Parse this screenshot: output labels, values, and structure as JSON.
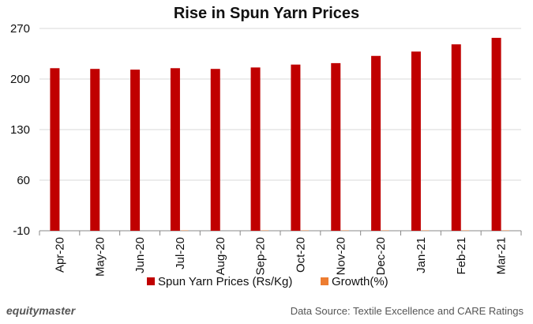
{
  "chart_data": {
    "type": "bar",
    "title": "Rise in Spun Yarn Prices",
    "categories": [
      "Apr-20",
      "May-20",
      "Jun-20",
      "Jul-20",
      "Aug-20",
      "Sep-20",
      "Oct-20",
      "Nov-20",
      "Dec-20",
      "Jan-21",
      "Feb-21",
      "Mar-21"
    ],
    "series": [
      {
        "name": "Spun Yarn Prices (Rs/Kg)",
        "color": "#c00000",
        "values": [
          215,
          214,
          213,
          215,
          214,
          216,
          220,
          222,
          232,
          238,
          248,
          257
        ]
      },
      {
        "name": "Growth(%)",
        "color": "#ed7d31",
        "values": [
          0,
          0,
          0,
          0.5,
          0,
          0.5,
          0.5,
          0.5,
          0.5,
          0.5,
          0.5,
          0.5
        ]
      }
    ],
    "yticks": [
      -10,
      60,
      130,
      200,
      270
    ],
    "ylim": [
      -10,
      270
    ],
    "xlabel": "",
    "ylabel": "",
    "grid": true,
    "legend_position": "bottom"
  },
  "footer": {
    "brand": "equitymaster",
    "source": "Data Source: Textile Excellence  and CARE Ratings"
  }
}
